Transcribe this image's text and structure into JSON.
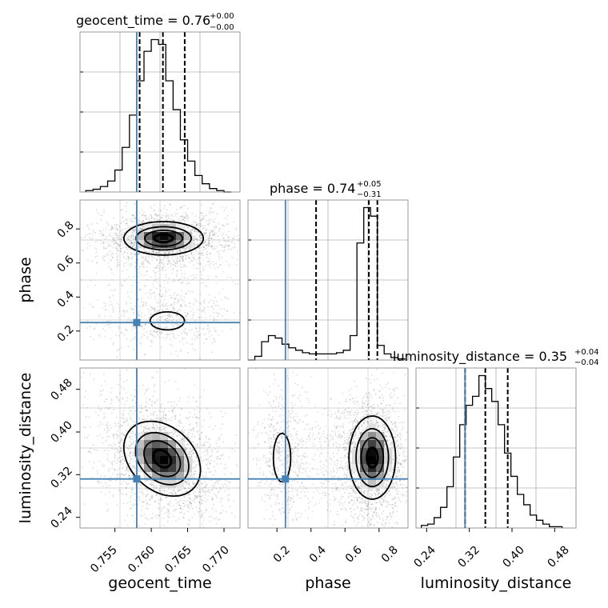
{
  "chart_data": {
    "type": "corner",
    "truth_color": "#4682b4",
    "params": [
      {
        "key": "geocent_time",
        "label": "geocent_time",
        "range": [
          0.7502,
          0.7722
        ],
        "ticks": [
          "0.755",
          "0.760",
          "0.765",
          "0.770"
        ],
        "truth": 0.758
      },
      {
        "key": "phase",
        "label": "phase",
        "range": [
          0.03,
          0.97
        ],
        "ticks": [
          "0.2",
          "0.4",
          "0.6",
          "0.8"
        ],
        "truth": 0.25
      },
      {
        "key": "luminosity_distance",
        "label": "luminosity_distance",
        "range": [
          0.22,
          0.52
        ],
        "ticks": [
          "0.24",
          "0.32",
          "0.40",
          "0.48"
        ],
        "truth": 0.312
      }
    ],
    "titles": [
      {
        "name": "geocent_time = 0.76",
        "sup": "+0.00",
        "sub": "−0.00"
      },
      {
        "name": "phase = 0.74",
        "sup": "+0.05",
        "sub": "−0.31"
      },
      {
        "name": "luminosity_distance = 0.35",
        "sup": "+0.04",
        "sub": "−0.04"
      }
    ],
    "histograms": [
      {
        "param": "geocent_time",
        "edges": [
          0.751,
          0.752,
          0.753,
          0.754,
          0.755,
          0.756,
          0.757,
          0.758,
          0.759,
          0.76,
          0.761,
          0.762,
          0.763,
          0.764,
          0.765,
          0.766,
          0.767,
          0.768,
          0.769,
          0.77,
          0.771
        ],
        "counts": [
          2,
          4,
          8,
          16,
          32,
          65,
          112,
          162,
          205,
          222,
          215,
          162,
          120,
          76,
          45,
          24,
          12,
          5,
          2,
          0
        ],
        "quantiles": [
          0.7584,
          0.7616,
          0.7646
        ]
      },
      {
        "param": "phase",
        "edges": [
          0.03,
          0.07,
          0.11,
          0.15,
          0.19,
          0.23,
          0.27,
          0.31,
          0.35,
          0.39,
          0.43,
          0.47,
          0.51,
          0.55,
          0.59,
          0.63,
          0.67,
          0.71,
          0.75,
          0.79,
          0.83,
          0.87,
          0.91,
          0.95
        ],
        "counts": [
          0,
          3,
          15,
          20,
          18,
          13,
          10,
          8,
          6,
          5,
          5,
          5,
          5,
          6,
          8,
          20,
          96,
          125,
          118,
          12,
          5,
          2,
          1
        ],
        "quantiles": [
          0.43,
          0.74,
          0.79
        ]
      },
      {
        "param": "luminosity_distance",
        "edges": [
          0.23,
          0.242,
          0.254,
          0.266,
          0.278,
          0.29,
          0.302,
          0.314,
          0.326,
          0.338,
          0.35,
          0.362,
          0.374,
          0.386,
          0.398,
          0.41,
          0.422,
          0.434,
          0.446,
          0.458,
          0.47,
          0.482,
          0.494
        ],
        "counts": [
          2,
          3,
          8,
          16,
          32,
          55,
          80,
          95,
          102,
          118,
          108,
          98,
          80,
          58,
          40,
          26,
          18,
          10,
          6,
          3,
          1,
          1
        ],
        "quantiles": [
          0.312,
          0.35,
          0.392
        ]
      }
    ],
    "pairs": [
      {
        "x": "geocent_time",
        "y": "phase",
        "modes": [
          {
            "cx": 0.7617,
            "cy": 0.745,
            "sx": 0.0028,
            "sy": 0.05,
            "w": 0.82
          },
          {
            "cx": 0.7622,
            "cy": 0.26,
            "sx": 0.0027,
            "sy": 0.06,
            "w": 0.18
          }
        ]
      },
      {
        "x": "geocent_time",
        "y": "luminosity_distance",
        "modes": [
          {
            "cx": 0.7615,
            "cy": 0.35,
            "sx": 0.0027,
            "sy": 0.036,
            "rho": -0.3,
            "w": 1.0
          }
        ]
      },
      {
        "x": "phase",
        "y": "luminosity_distance",
        "modes": [
          {
            "cx": 0.76,
            "cy": 0.352,
            "sx": 0.07,
            "sy": 0.04,
            "w": 0.8
          },
          {
            "cx": 0.23,
            "cy": 0.352,
            "sx": 0.05,
            "sy": 0.045,
            "w": 0.2
          }
        ]
      }
    ],
    "grid": true,
    "legend": "none"
  }
}
